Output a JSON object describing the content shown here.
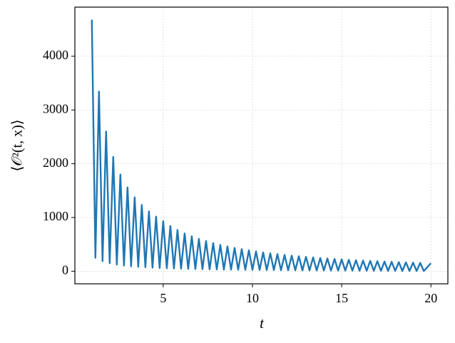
{
  "chart_data": {
    "type": "line",
    "xlabel": "t",
    "ylabel": "⟨𝒪²(t, x)⟩",
    "x": [
      1,
      1.2,
      1.4,
      1.6,
      1.8,
      2,
      2.2,
      2.4,
      2.6,
      2.8,
      3,
      3.2,
      3.4,
      3.6,
      3.8,
      4,
      4.2,
      4.4,
      4.6,
      4.8,
      5,
      5.2,
      5.4,
      5.6,
      5.8,
      6,
      6.2,
      6.4,
      6.6,
      6.8,
      7,
      7.2,
      7.4,
      7.6,
      7.8,
      8,
      8.2,
      8.4,
      8.6,
      8.8,
      9,
      9.2,
      9.4,
      9.6,
      9.8,
      10,
      10.2,
      10.4,
      10.6,
      10.8,
      11,
      11.2,
      11.4,
      11.6,
      11.8,
      12,
      12.2,
      12.4,
      12.6,
      12.8,
      13,
      13.2,
      13.4,
      13.6,
      13.8,
      14,
      14.2,
      14.4,
      14.6,
      14.8,
      15,
      15.2,
      15.4,
      15.6,
      15.8,
      16,
      16.2,
      16.4,
      16.6,
      16.8,
      17,
      17.2,
      17.4,
      17.6,
      17.8,
      18,
      18.2,
      18.4,
      18.6,
      18.8,
      19,
      19.2,
      19.4,
      19.6,
      20
    ],
    "series": [
      {
        "color": "#1f77b4",
        "values": [
          4680,
          250,
          3343,
          187,
          2600,
          149,
          2127,
          124,
          1800,
          106,
          1560,
          92,
          1376,
          82,
          1232,
          73,
          1114,
          66,
          1017,
          60,
          933,
          55,
          842,
          51,
          768,
          47,
          704,
          44,
          650,
          41,
          602,
          38,
          561,
          35,
          524,
          33,
          491,
          31,
          462,
          29,
          435,
          28,
          412,
          26,
          390,
          25,
          370,
          23,
          351,
          22,
          334,
          21,
          319,
          20,
          304,
          18,
          291,
          17,
          279,
          16,
          267,
          15,
          257,
          14,
          247,
          13,
          237,
          12,
          229,
          12,
          221,
          11,
          213,
          10,
          206,
          9,
          199,
          9,
          193,
          8,
          187,
          7,
          181,
          7,
          175,
          6,
          170,
          5,
          165,
          5,
          161,
          4,
          156,
          4,
          150
        ]
      }
    ],
    "xlim": [
      0.05,
      20.95
    ],
    "ylim": [
      -234,
      4914
    ],
    "xticks": [
      5,
      10,
      15,
      20
    ],
    "yticks": [
      0,
      1000,
      2000,
      3000,
      4000
    ],
    "grid": true
  }
}
